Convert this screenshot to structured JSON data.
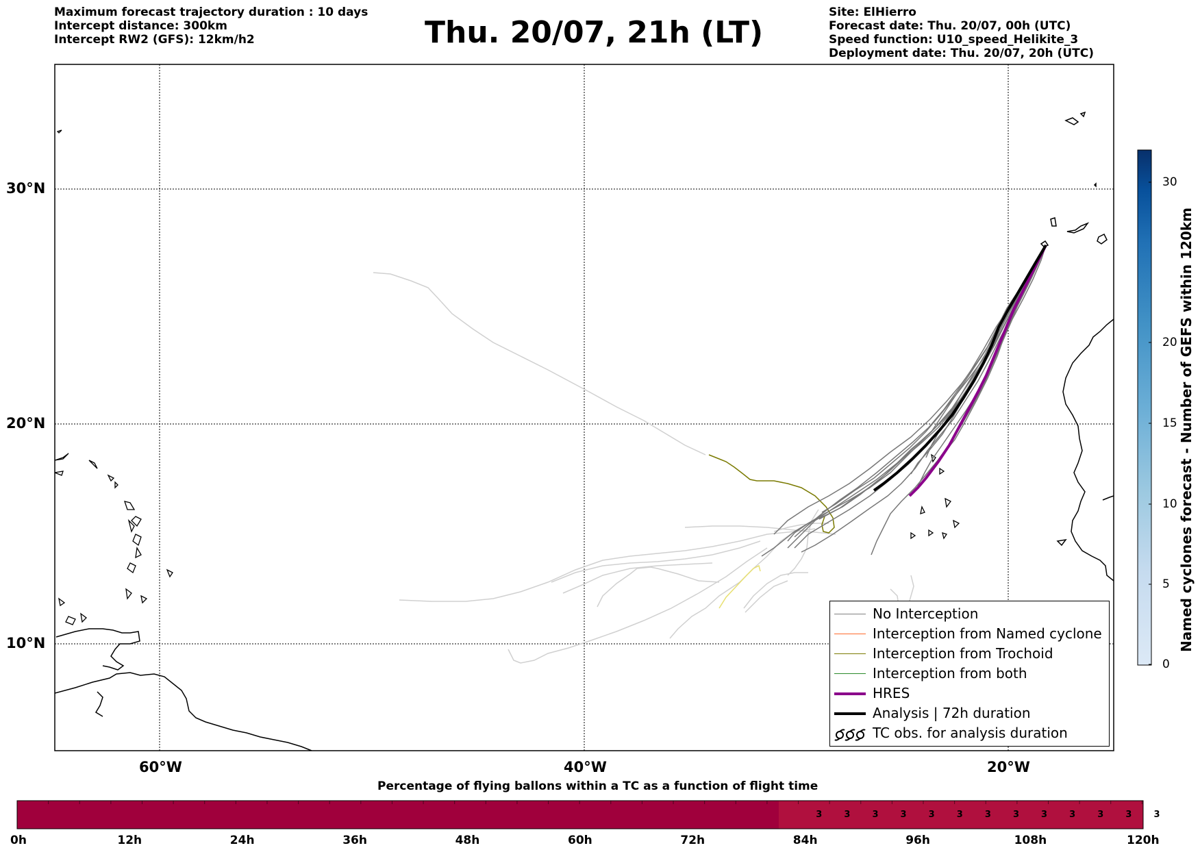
{
  "header": {
    "left_lines": [
      "Maximum forecast trajectory duration : 10 days",
      "Intercept distance: 300km",
      "Intercept RW2 (GFS):  12km/h2"
    ],
    "title": "Thu. 20/07, 21h (LT)",
    "right_lines": [
      "Site: ElHierro",
      "Forecast date: Thu. 20/07, 00h (UTC)",
      "Speed function: U10_speed_Helikite_3",
      "Deployment date: Thu. 20/07, 20h (UTC)"
    ]
  },
  "map": {
    "lat_labels": [
      "30°N",
      "20°N",
      "10°N"
    ],
    "lon_labels": [
      "60°W",
      "40°W",
      "20°W"
    ],
    "colors": {
      "no_interception": "#808080",
      "named_cyclone": "#ff6a2a",
      "trochoid": "#7a7a00",
      "both": "#2a8a2a",
      "hres": "#8b008b",
      "analysis": "#000000",
      "faded_track": "#d0d0d0",
      "yellow_track": "#e8e070"
    }
  },
  "legend": {
    "items": [
      {
        "label": "No Interception",
        "icon": "gray-line"
      },
      {
        "label": "Interception from Named cyclone",
        "icon": "orange-line"
      },
      {
        "label": "Interception from Trochoid",
        "icon": "olive-line"
      },
      {
        "label": "Interception from both",
        "icon": "green-line"
      },
      {
        "label": "HRES",
        "icon": "purple-thick-line"
      },
      {
        "label": "Analysis | 72h duration",
        "icon": "black-thick-line"
      },
      {
        "label": "TC obs. for analysis duration",
        "icon": "cyclone-symbols-icon"
      }
    ]
  },
  "colorbar": {
    "title": "Named cyclones forecast - Number of GEFS within 120km",
    "ticks": [
      "0",
      "5",
      "10",
      "15",
      "20",
      "30"
    ],
    "colors": [
      "#dce9f6",
      "#c6dbef",
      "#9ecae1",
      "#6baed6",
      "#4292c6",
      "#2171b5",
      "#08519c",
      "#08306b"
    ]
  },
  "timeline": {
    "title": "Percentage of flying ballons within a TC as a function of flight time",
    "ticks": [
      "0h",
      "12h",
      "24h",
      "36h",
      "48h",
      "60h",
      "72h",
      "84h",
      "96h",
      "108h",
      "120h"
    ],
    "values": [
      "3",
      "3",
      "3",
      "3",
      "3",
      "3",
      "3",
      "3",
      "3",
      "3",
      "3",
      "3",
      "3"
    ],
    "colors": {
      "base": "#a0003c",
      "highlight": "#b0103e"
    }
  }
}
